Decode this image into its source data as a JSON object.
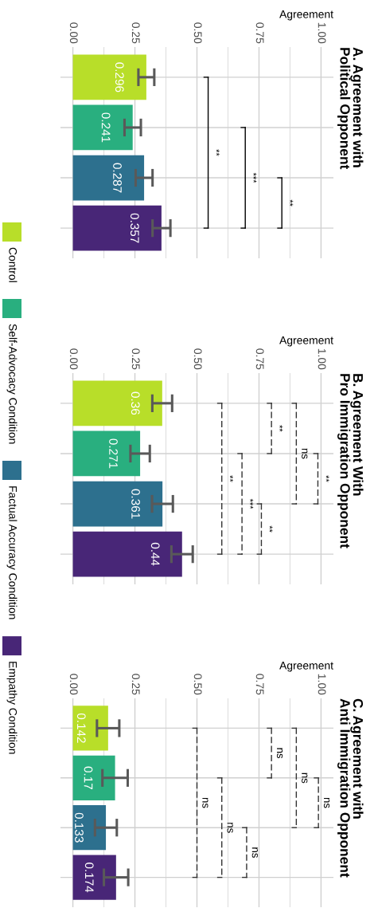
{
  "chart_data": [
    {
      "type": "bar",
      "orientation": "horizontal",
      "title": "A. Agreement with\nPolitical Opponent",
      "xlabel": "Agreement",
      "categories": [
        null,
        null,
        null,
        null
      ],
      "xlim": [
        -0.05,
        1.05
      ],
      "xticks": [
        {
          "value": 0,
          "label": "0.00"
        },
        {
          "value": 0.25,
          "label": "0.25"
        },
        {
          "value": 0.5,
          "label": "0.50"
        },
        {
          "value": 0.75,
          "label": "0.75"
        },
        {
          "value": 1,
          "label": "1.00"
        }
      ],
      "grid": true,
      "tick_labels": "x",
      "data_labels": true,
      "legend": "left",
      "line_style": "solid",
      "series": [
        {
          "name": "Control",
          "color": "#b8de29",
          "values": [
            0.296,
            null,
            null,
            null
          ],
          "errors": [
            0.032,
            null,
            null,
            null
          ]
        },
        {
          "name": "Self-Advocacy Condition",
          "color": "#29af7f",
          "values": [
            null,
            0.241,
            null,
            null
          ],
          "errors": [
            null,
            0.033,
            null,
            null
          ]
        },
        {
          "name": "Factual Accuracy Condition",
          "color": "#2d708e",
          "values": [
            null,
            null,
            0.287,
            null
          ],
          "errors": [
            null,
            null,
            0.034,
            null
          ]
        },
        {
          "name": "Empathy Condition",
          "color": "#482677",
          "values": [
            null,
            null,
            null,
            0.357
          ],
          "errors": [
            null,
            null,
            null,
            0.036
          ]
        }
      ],
      "annotations": [
        "**",
        "***",
        "**"
      ]
    },
    {
      "type": "bar",
      "orientation": "horizontal",
      "title": "B. Agreement With\nPro Immigration Opponent",
      "xlabel": "Agreement",
      "categories": [
        null,
        null,
        null,
        null
      ],
      "xlim": [
        -0.05,
        1.05
      ],
      "xticks": [
        {
          "value": 0,
          "label": "0.00"
        },
        {
          "value": 0.25,
          "label": "0.25"
        },
        {
          "value": 0.5,
          "label": "0.50"
        },
        {
          "value": 0.75,
          "label": "0.75"
        },
        {
          "value": 1,
          "label": "1.00"
        }
      ],
      "grid": true,
      "tick_labels": "x",
      "data_labels": true,
      "line_style": "dashed",
      "series": [
        {
          "color": "#b8de29",
          "values": [
            0.36,
            null,
            null,
            null
          ],
          "errors": [
            0.04,
            null,
            null,
            null
          ]
        },
        {
          "color": "#29af7f",
          "values": [
            null,
            0.271,
            null,
            null
          ],
          "errors": [
            null,
            0.039,
            null,
            null
          ]
        },
        {
          "color": "#2d708e",
          "values": [
            null,
            null,
            0.361,
            null
          ],
          "errors": [
            null,
            null,
            0.042,
            null
          ]
        },
        {
          "color": "#482677",
          "values": [
            null,
            null,
            null,
            0.44
          ],
          "errors": [
            null,
            null,
            null,
            0.043
          ]
        }
      ],
      "annotations": [
        "**",
        "ns",
        "**",
        "**",
        "***",
        "**"
      ]
    },
    {
      "type": "bar",
      "orientation": "horizontal",
      "title": "C. Agreement with\nAnti Immigration Opponent",
      "xlabel": "Agreement",
      "categories": [
        null,
        null,
        null,
        null
      ],
      "xlim": [
        -0.05,
        1.05
      ],
      "xticks": [
        {
          "value": 0,
          "label": "0.00"
        },
        {
          "value": 0.25,
          "label": "0.25"
        },
        {
          "value": 0.5,
          "label": "0.50"
        },
        {
          "value": 0.75,
          "label": "0.75"
        },
        {
          "value": 1,
          "label": "1.00"
        }
      ],
      "grid": true,
      "tick_labels": "x",
      "data_labels": true,
      "line_style": "dashed",
      "series": [
        {
          "color": "#b8de29",
          "values": [
            0.142,
            null,
            null,
            null
          ],
          "errors": [
            0.045,
            null,
            null,
            null
          ]
        },
        {
          "color": "#29af7f",
          "values": [
            null,
            0.17,
            null,
            null
          ],
          "errors": [
            null,
            0.051,
            null,
            null
          ]
        },
        {
          "color": "#2d708e",
          "values": [
            null,
            null,
            0.133,
            null
          ],
          "errors": [
            null,
            null,
            0.044,
            null
          ]
        },
        {
          "color": "#482677",
          "values": [
            null,
            null,
            null,
            0.174
          ],
          "errors": [
            null,
            null,
            null,
            0.049
          ]
        }
      ],
      "annotations": [
        "ns",
        "ns",
        "ns",
        "ns",
        "ns",
        "ns"
      ]
    }
  ]
}
